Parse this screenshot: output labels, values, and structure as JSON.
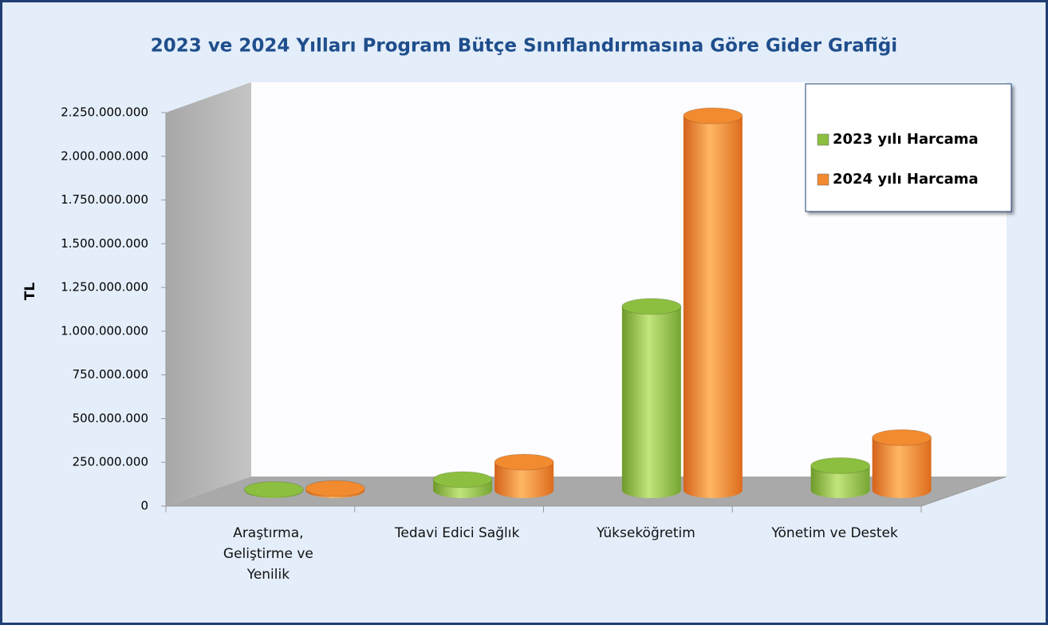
{
  "chart_data": {
    "type": "bar3d",
    "title": "2023 ve 2024 Yılları Program Bütçe Sınıflandırmasına Göre Gider Grafiği",
    "y_label": "TL",
    "categories": [
      "Araştırma, Geliştirme ve Yenilik",
      "Tedavi Edici Sağlık",
      "Yükseköğretim",
      "Yönetim ve Destek"
    ],
    "series": [
      {
        "name": "2023 yılı Harcama",
        "color": "#8cbf3f",
        "values": [
          3000000,
          60000000,
          1050000000,
          140000000
        ]
      },
      {
        "name": "2024 yılı Harcama",
        "color": "#f28a30",
        "values": [
          9000000,
          160000000,
          2140000000,
          300000000
        ]
      }
    ],
    "ylim": [
      0,
      2250000000
    ],
    "yticks": [
      0,
      {
        "value": 250000000,
        "label": "250.000.000"
      },
      {
        "value": 500000000,
        "label": "500.000.000"
      },
      {
        "value": 750000000,
        "label": "750.000.000"
      },
      {
        "value": 1000000000,
        "label": "1.000.000.000"
      },
      {
        "value": 1250000000,
        "label": "1.250.000.000"
      },
      {
        "value": 1500000000,
        "label": "1.500.000.000"
      },
      {
        "value": 1750000000,
        "label": "1.750.000.000"
      },
      {
        "value": 2000000000,
        "label": "2.000.000.000"
      },
      {
        "value": 2250000000,
        "label": "2.250.000.000"
      }
    ],
    "legend": "upper right"
  }
}
